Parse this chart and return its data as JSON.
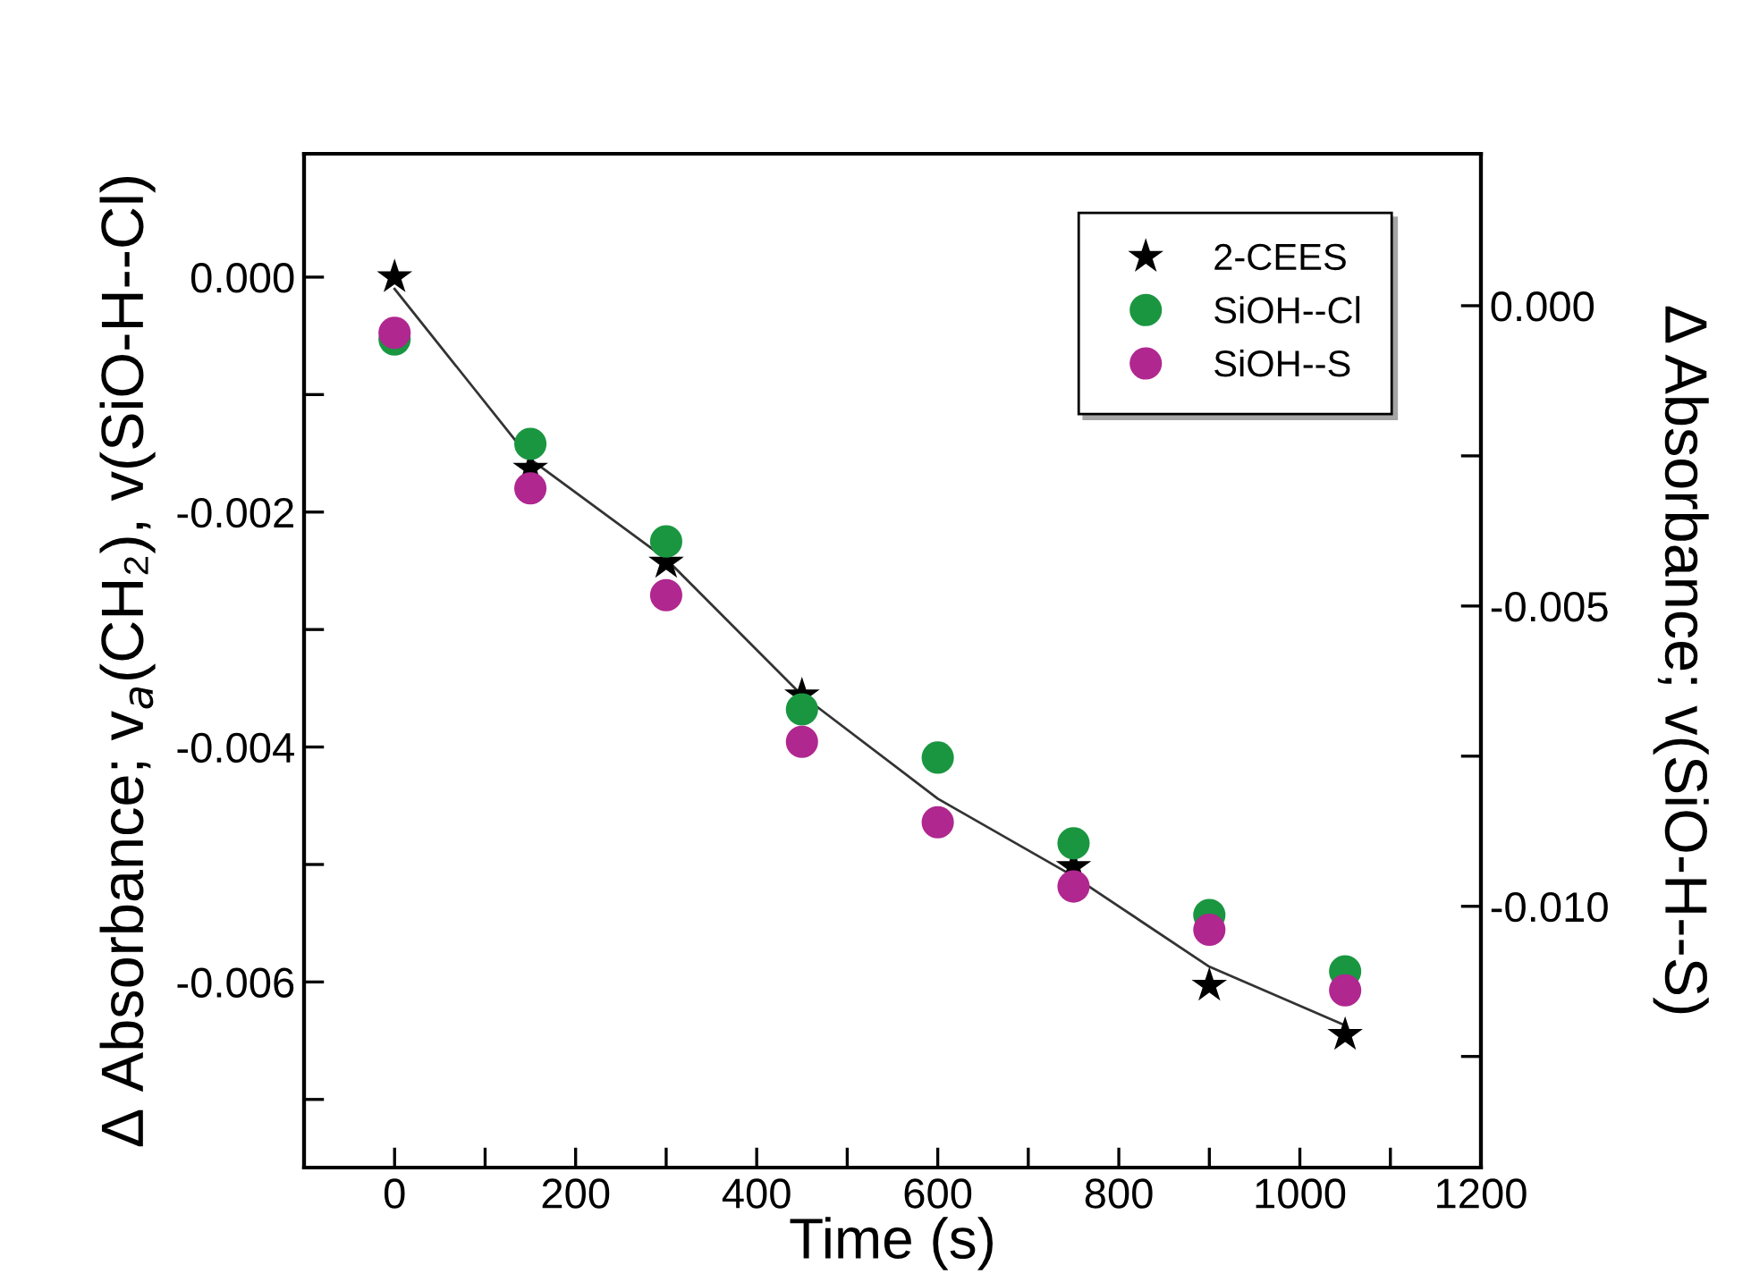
{
  "chart_data": {
    "type": "scatter",
    "xlabel": "Time (s)",
    "ylabel": "Δ Absorbance; v$_{a}$(CH₂), v(SiO-H--Cl)",
    "y2label": "Δ Absorbance; v(SiO-H--S)",
    "x": [
      0,
      150,
      300,
      450,
      600,
      750,
      900,
      1050
    ],
    "xlim": [
      -100,
      1200
    ],
    "xticks": [
      0,
      {
        "value": 100,
        "label": null
      },
      200,
      {
        "value": 300,
        "label": null
      },
      400,
      {
        "value": 500,
        "label": null
      },
      600,
      {
        "value": 700,
        "label": null
      },
      800,
      {
        "value": 900,
        "label": null
      },
      1000,
      {
        "value": 1100,
        "label": null
      },
      1200
    ],
    "ylim": [
      -0.00758,
      0.00105
    ],
    "yticks": [
      {
        "value": 0,
        "label": "0.000"
      },
      {
        "value": -0.001,
        "label": null
      },
      {
        "value": -0.002,
        "label": "-0.002"
      },
      {
        "value": -0.003,
        "label": null
      },
      {
        "value": -0.004,
        "label": "-0.004"
      },
      {
        "value": -0.005,
        "label": null
      },
      {
        "value": -0.006,
        "label": "-0.006"
      },
      {
        "value": -0.007,
        "label": null
      }
    ],
    "y2lim": [
      -0.01435,
      0.00253
    ],
    "y2ticks": [
      {
        "value": 0,
        "label": "0.000"
      },
      {
        "value": -0.0025,
        "label": null
      },
      {
        "value": -0.005,
        "label": "-0.005"
      },
      {
        "value": -0.0075,
        "label": null
      },
      {
        "value": -0.01,
        "label": "-0.010"
      },
      {
        "value": -0.0125,
        "label": null
      }
    ],
    "grid": false,
    "legend": "top right",
    "series": [
      {
        "name": "2-CEES",
        "color": "#000000",
        "marker": "star",
        "values": [
          0,
          -0.00163,
          -0.00243,
          -0.00356,
          null,
          -0.00502,
          -0.00603,
          -0.00645
        ]
      },
      {
        "name": "SiOH--Cl",
        "color": "#1a9641",
        "marker": "circle",
        "values": [
          -0.00053,
          -0.00142,
          -0.00225,
          -0.00368,
          -0.00409,
          -0.00482,
          -0.00543,
          -0.00591
        ]
      },
      {
        "name": "SiOH--S",
        "color": "#b0278f",
        "marker": "circle",
        "axis": "y2",
        "values": [
          -0.00045,
          -0.00304,
          -0.00482,
          -0.00726,
          -0.0086,
          -0.00967,
          -0.01039,
          -0.0114
        ]
      },
      {
        "type": "line",
        "color": "#333333",
        "marker": "none",
        "line_style": "solid",
        "values": [
          -0.0001,
          -0.00155,
          -0.0024,
          -0.00356,
          -0.00444,
          -0.0051,
          -0.00587,
          -0.00637
        ]
      }
    ]
  }
}
